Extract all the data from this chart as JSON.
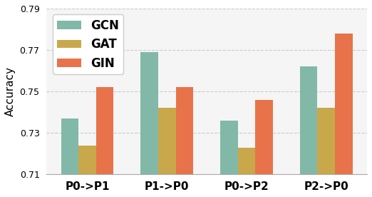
{
  "categories": [
    "P0->P1",
    "P1->P0",
    "P0->P2",
    "P2->P0"
  ],
  "series": {
    "GCN": [
      0.737,
      0.769,
      0.736,
      0.762
    ],
    "GAT": [
      0.724,
      0.742,
      0.723,
      0.742
    ],
    "GIN": [
      0.752,
      0.752,
      0.746,
      0.778
    ]
  },
  "colors": {
    "GCN": "#82b8a8",
    "GAT": "#c8a84b",
    "GIN": "#e8734a"
  },
  "ylabel": "Accuracy",
  "ylim": [
    0.71,
    0.79
  ],
  "yticks": [
    0.71,
    0.73,
    0.75,
    0.77,
    0.79
  ],
  "legend_fontsize": 12,
  "bar_width": 0.22,
  "grid_color": "#cccccc",
  "background_color": "#f5f5f5"
}
